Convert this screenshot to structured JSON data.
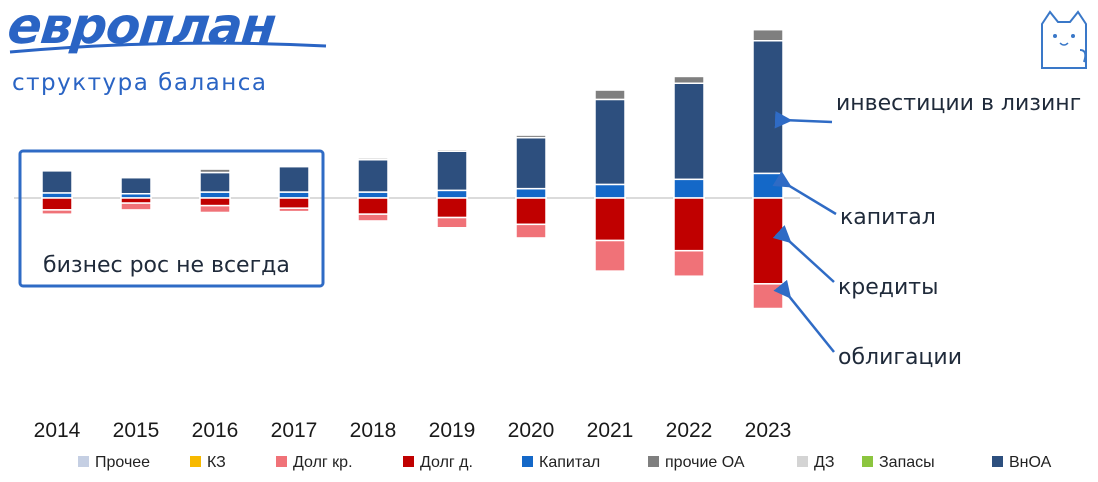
{
  "header": {
    "logo_text": "европлан",
    "subtitle": "структура баланса"
  },
  "colors": {
    "brand": "#2a64c4",
    "callout_box": "#2f6bc5",
    "arrow": "#2f6bc5"
  },
  "icons": {
    "corner": "cat-icon"
  },
  "chart_data": {
    "type": "bar",
    "stacked": "diverging",
    "title": "",
    "xlabel": "",
    "ylabel": "",
    "categories": [
      "2014",
      "2015",
      "2016",
      "2017",
      "2018",
      "2019",
      "2020",
      "2021",
      "2022",
      "2023"
    ],
    "positive_series": [
      {
        "name": "Капитал",
        "color": "#1468c8",
        "values": [
          6,
          5,
          7,
          7,
          7,
          9,
          11,
          16,
          22,
          29
        ]
      },
      {
        "name": "ВнОА",
        "color": "#2d4f7e",
        "values": [
          26,
          19,
          23,
          30,
          38,
          46,
          60,
          100,
          113,
          156
        ]
      },
      {
        "name": "прочие ОА",
        "color": "#7f7f7f",
        "values": [
          1,
          1,
          4,
          1,
          2,
          2,
          3,
          11,
          8,
          13
        ]
      }
    ],
    "negative_series": [
      {
        "name": "Долг д.",
        "color": "#c00000",
        "values": [
          14,
          6,
          9,
          12,
          19,
          23,
          31,
          50,
          62,
          101
        ]
      },
      {
        "name": "Долг кр.",
        "color": "#f07278",
        "values": [
          5,
          8,
          8,
          4,
          8,
          12,
          16,
          36,
          30,
          29
        ]
      }
    ],
    "legend_position": "bottom",
    "legend": [
      {
        "name": "Прочее",
        "color": "#c5cfe3"
      },
      {
        "name": "КЗ",
        "color": "#f7b900"
      },
      {
        "name": "Долг кр.",
        "color": "#f07278"
      },
      {
        "name": "Долг д.",
        "color": "#c00000"
      },
      {
        "name": "Капитал",
        "color": "#1468c8"
      },
      {
        "name": "прочие ОА",
        "color": "#7f7f7f"
      },
      {
        "name": "ДЗ",
        "color": "#d4d4d4"
      },
      {
        "name": "Запасы",
        "color": "#8cc53f"
      },
      {
        "name": "ВнОА",
        "color": "#2d4f7e"
      }
    ],
    "annotations": {
      "box_text": "бизнес рос не всегда",
      "callouts": [
        {
          "text": "инвестиции в лизинг",
          "target": "ВнОА"
        },
        {
          "text": "капитал",
          "target": "Капитал"
        },
        {
          "text": "кредиты",
          "target": "Долг д."
        },
        {
          "text": "облигации",
          "target": "Долг кр."
        }
      ]
    }
  }
}
